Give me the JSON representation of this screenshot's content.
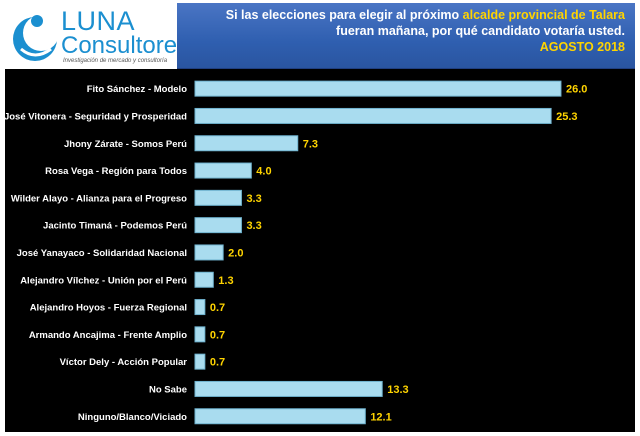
{
  "header": {
    "brand_name": "LUNA",
    "brand_sub": "Consultores",
    "brand_tagline": "Investigación de mercado y consultoría",
    "title_line1_a": "Si las elecciones para elegir al próximo ",
    "title_line1_b": "alcalde provincial de Talara",
    "title_line2": "fueran mañana, por qué candidato votaría usted.",
    "title_date": "AGOSTO 2018",
    "colors": {
      "title_bg": "#2f5fb0",
      "highlight": "#ffd400",
      "brand": "#1b8fd0"
    }
  },
  "chart_data": {
    "type": "bar",
    "orientation": "horizontal",
    "categories": [
      "Fito Sánchez - Modelo",
      "José Vitonera - Seguridad y Prosperidad",
      "Jhony Zárate - Somos Perú",
      "Rosa Vega - Región para Todos",
      "Wilder Alayo - Alianza para el Progreso",
      "Jacinto Timaná - Podemos Perú",
      "José Yanayaco - Solidaridad Nacional",
      "Alejandro Vílchez - Unión por el Perú",
      "Alejandro Hoyos - Fuerza Regional",
      "Armando Ancajima - Frente Amplio",
      "Víctor Dely - Acción Popular",
      "No Sabe",
      "Ninguno/Blanco/Viciado"
    ],
    "values": [
      26.0,
      25.3,
      7.3,
      4.0,
      3.3,
      3.3,
      2.0,
      1.3,
      0.7,
      0.7,
      0.7,
      13.3,
      12.1
    ],
    "value_labels": [
      "26.0",
      "25.3",
      "7.3",
      "4.0",
      "3.3",
      "3.3",
      "2.0",
      "1.3",
      "0.7",
      "0.7",
      "0.7",
      "13.3",
      "12.1"
    ],
    "xlim": [
      0,
      26.5
    ],
    "title": "",
    "xlabel": "",
    "ylabel": "",
    "grid": false,
    "colors": {
      "bar": "#a9dcef",
      "bar_edge": "#6fb3cf",
      "label": "#ffffff",
      "value": "#ffd400",
      "background": "#000000"
    }
  }
}
